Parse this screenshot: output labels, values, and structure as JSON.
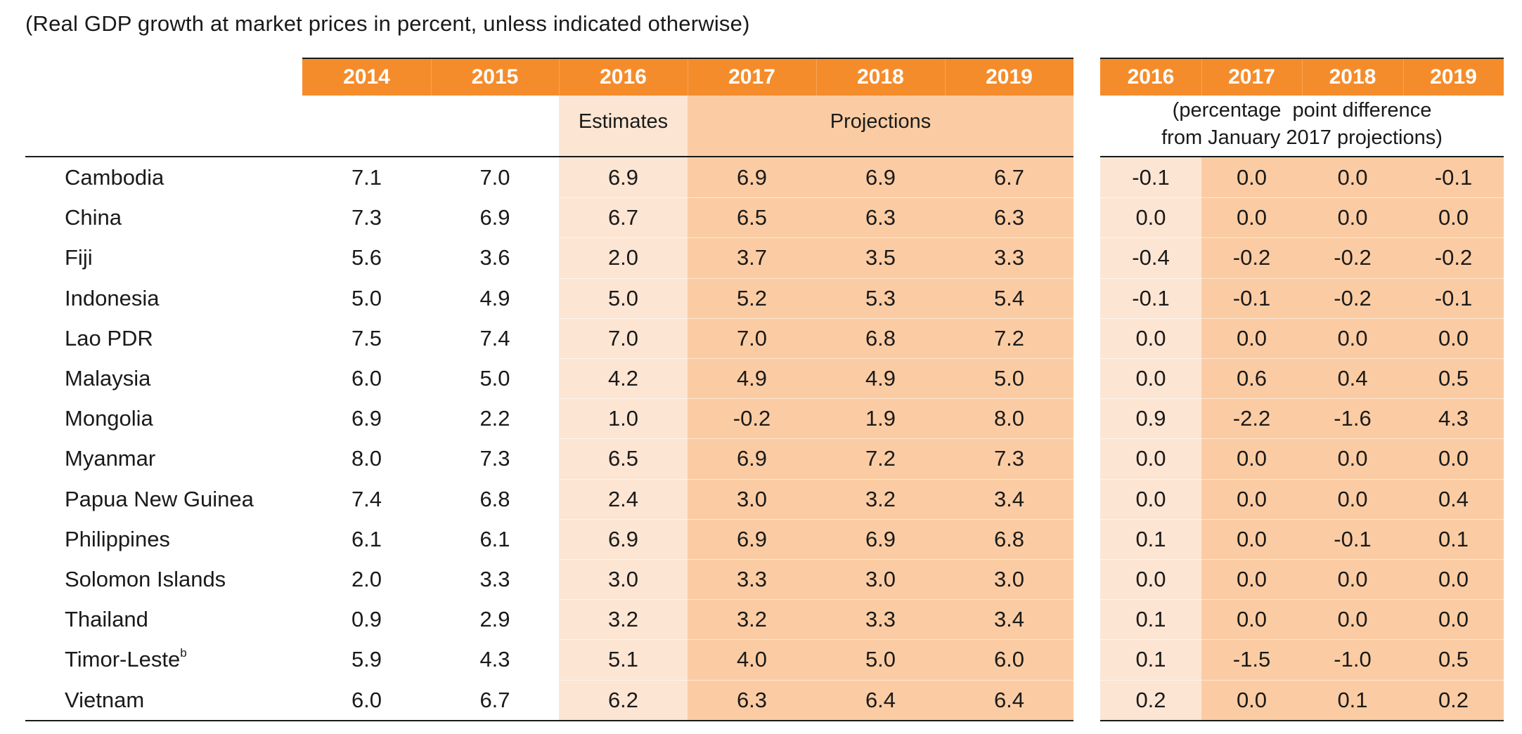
{
  "caption": "(Real GDP growth at market prices in percent, unless indicated otherwise)",
  "colors": {
    "header_orange": "#f58c2b",
    "estimates_fill": "#fde5d3",
    "projections_fill": "#fbcca3"
  },
  "left_table": {
    "years": [
      "2014",
      "2015",
      "2016",
      "2017",
      "2018",
      "2019"
    ],
    "estimates_label": "Estimates",
    "projections_label": "Projections"
  },
  "right_table": {
    "years": [
      "2016",
      "2017",
      "2018",
      "2019"
    ],
    "note_line1": "(percentage  point difference",
    "note_line2": "from January 2017 projections)"
  },
  "rows": [
    {
      "country": "Cambodia",
      "sup": "",
      "values": [
        "7.1",
        "7.0",
        "6.9",
        "6.9",
        "6.9",
        "6.7"
      ],
      "diffs": [
        "-0.1",
        "0.0",
        "0.0",
        "-0.1"
      ]
    },
    {
      "country": "China",
      "sup": "",
      "values": [
        "7.3",
        "6.9",
        "6.7",
        "6.5",
        "6.3",
        "6.3"
      ],
      "diffs": [
        "0.0",
        "0.0",
        "0.0",
        "0.0"
      ]
    },
    {
      "country": "Fiji",
      "sup": "",
      "values": [
        "5.6",
        "3.6",
        "2.0",
        "3.7",
        "3.5",
        "3.3"
      ],
      "diffs": [
        "-0.4",
        "-0.2",
        "-0.2",
        "-0.2"
      ]
    },
    {
      "country": "Indonesia",
      "sup": "",
      "values": [
        "5.0",
        "4.9",
        "5.0",
        "5.2",
        "5.3",
        "5.4"
      ],
      "diffs": [
        "-0.1",
        "-0.1",
        "-0.2",
        "-0.1"
      ]
    },
    {
      "country": "Lao PDR",
      "sup": "",
      "values": [
        "7.5",
        "7.4",
        "7.0",
        "7.0",
        "6.8",
        "7.2"
      ],
      "diffs": [
        "0.0",
        "0.0",
        "0.0",
        "0.0"
      ]
    },
    {
      "country": "Malaysia",
      "sup": "",
      "values": [
        "6.0",
        "5.0",
        "4.2",
        "4.9",
        "4.9",
        "5.0"
      ],
      "diffs": [
        "0.0",
        "0.6",
        "0.4",
        "0.5"
      ]
    },
    {
      "country": "Mongolia",
      "sup": "",
      "values": [
        "6.9",
        "2.2",
        "1.0",
        "-0.2",
        "1.9",
        "8.0"
      ],
      "diffs": [
        "0.9",
        "-2.2",
        "-1.6",
        "4.3"
      ]
    },
    {
      "country": "Myanmar",
      "sup": "",
      "values": [
        "8.0",
        "7.3",
        "6.5",
        "6.9",
        "7.2",
        "7.3"
      ],
      "diffs": [
        "0.0",
        "0.0",
        "0.0",
        "0.0"
      ]
    },
    {
      "country": "Papua New Guinea",
      "sup": "",
      "values": [
        "7.4",
        "6.8",
        "2.4",
        "3.0",
        "3.2",
        "3.4"
      ],
      "diffs": [
        "0.0",
        "0.0",
        "0.0",
        "0.4"
      ]
    },
    {
      "country": "Philippines",
      "sup": "",
      "values": [
        "6.1",
        "6.1",
        "6.9",
        "6.9",
        "6.9",
        "6.8"
      ],
      "diffs": [
        "0.1",
        "0.0",
        "-0.1",
        "0.1"
      ]
    },
    {
      "country": "Solomon Islands",
      "sup": "",
      "values": [
        "2.0",
        "3.3",
        "3.0",
        "3.3",
        "3.0",
        "3.0"
      ],
      "diffs": [
        "0.0",
        "0.0",
        "0.0",
        "0.0"
      ]
    },
    {
      "country": "Thailand",
      "sup": "",
      "values": [
        "0.9",
        "2.9",
        "3.2",
        "3.2",
        "3.3",
        "3.4"
      ],
      "diffs": [
        "0.1",
        "0.0",
        "0.0",
        "0.0"
      ]
    },
    {
      "country": "Timor-Leste",
      "sup": "b",
      "values": [
        "5.9",
        "4.3",
        "5.1",
        "4.0",
        "5.0",
        "6.0"
      ],
      "diffs": [
        "0.1",
        "-1.5",
        "-1.0",
        "0.5"
      ]
    },
    {
      "country": "Vietnam",
      "sup": "",
      "values": [
        "6.0",
        "6.7",
        "6.2",
        "6.3",
        "6.4",
        "6.4"
      ],
      "diffs": [
        "0.2",
        "0.0",
        "0.1",
        "0.2"
      ]
    }
  ]
}
